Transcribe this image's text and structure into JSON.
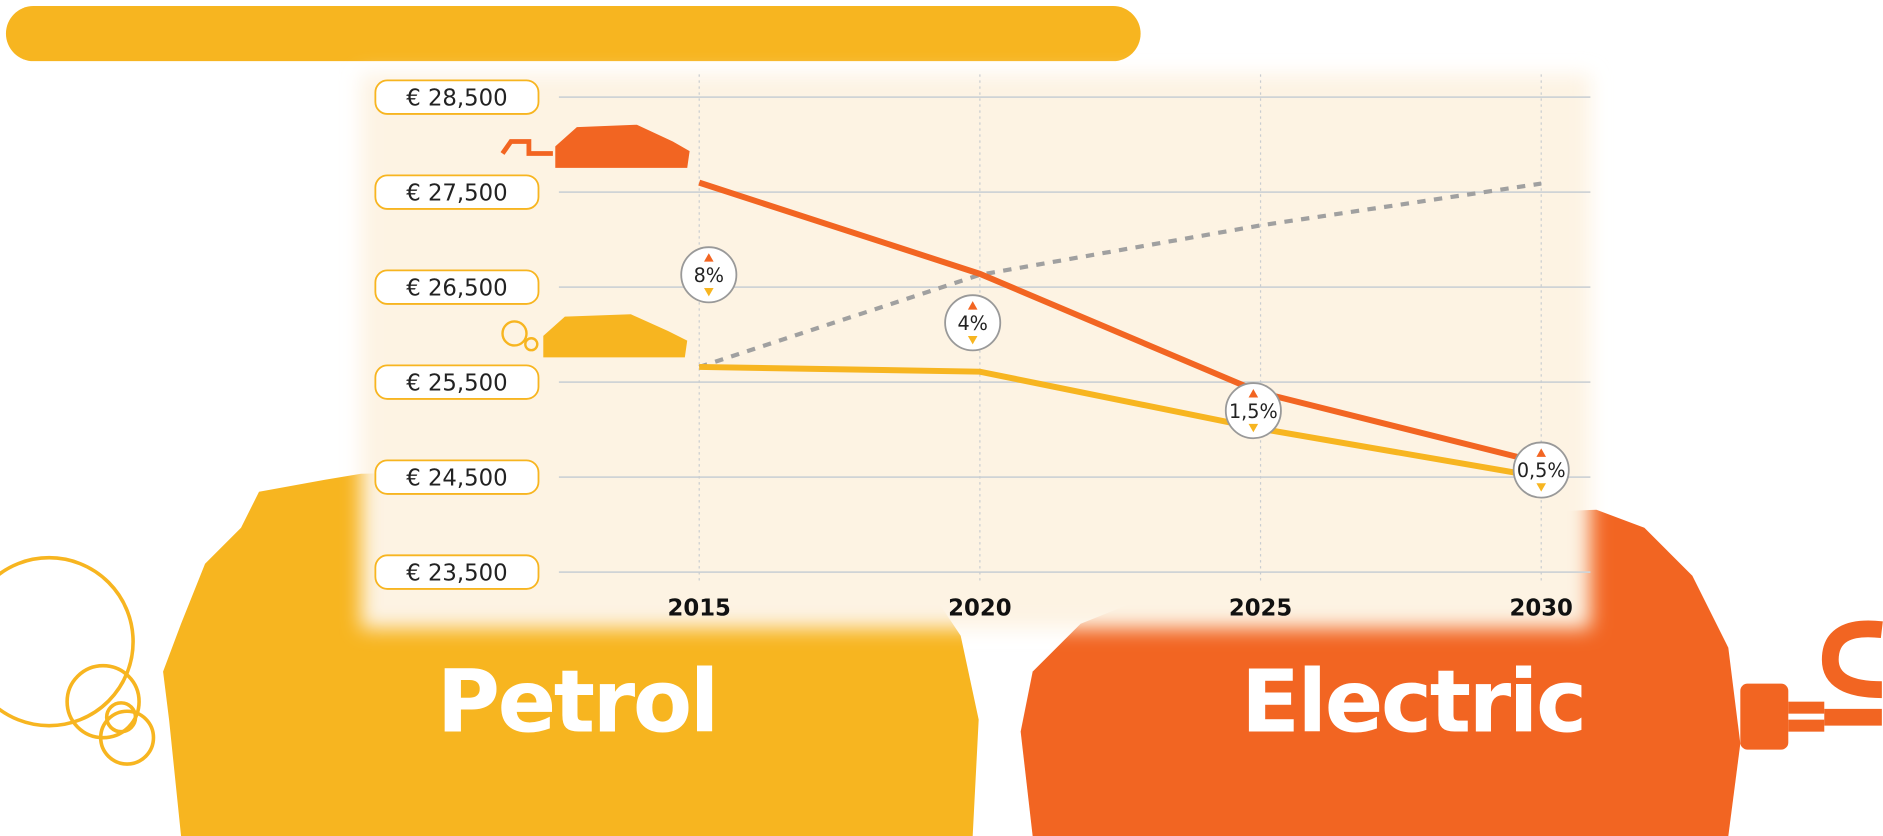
{
  "chart_data": {
    "type": "line",
    "categories": [
      "2015",
      "2020",
      "2025",
      "2030"
    ],
    "series": [
      {
        "name": "Electric",
        "color": "#f26522",
        "values": [
          27600,
          26640,
          25390,
          24650
        ]
      },
      {
        "name": "Petrol",
        "color": "#f7b520",
        "values": [
          25660,
          25610,
          25010,
          24500
        ]
      },
      {
        "color": "#a0a0a0",
        "dash": true,
        "values": [
          25660,
          26630,
          27150,
          27590
        ]
      }
    ],
    "annotations": [
      "8%",
      "4%",
      "1,5%",
      "0,5%"
    ],
    "ylim": [
      23500,
      28500
    ],
    "yticks": [
      {
        "value": 23500,
        "label": "€ 23,500"
      },
      {
        "value": 24500,
        "label": "€ 24,500"
      },
      {
        "value": 25500,
        "label": "€ 25,500"
      },
      {
        "value": 26500,
        "label": "€ 26,500"
      },
      {
        "value": 27500,
        "label": "€ 27,500"
      },
      {
        "value": 28500,
        "label": "€ 28,500"
      }
    ],
    "grid": true
  }
}
